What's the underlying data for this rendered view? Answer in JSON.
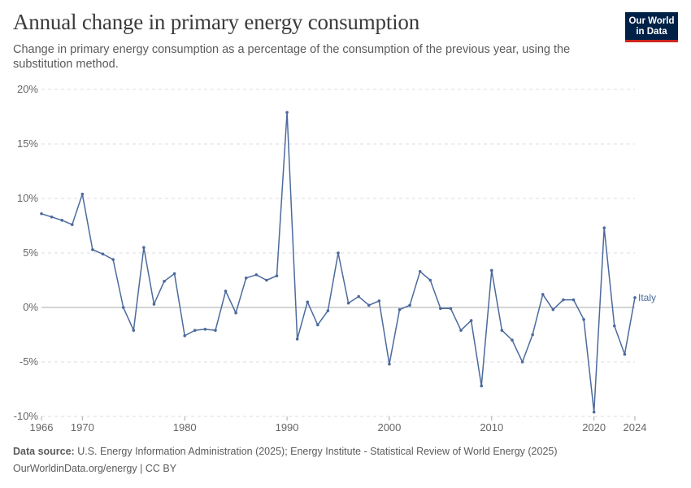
{
  "header": {
    "title": "Annual change in primary energy consumption",
    "subtitle": "Change in primary energy consumption as a percentage of the consumption of the previous year, using the substitution method.",
    "logo_line1": "Our World",
    "logo_line2": "in Data"
  },
  "footer": {
    "source_label": "Data source:",
    "source_text": "U.S. Energy Information Administration (2025); Energy Institute - Statistical Review of World Energy (2025)",
    "link_text": "OurWorldinData.org/energy",
    "license_text": "| CC BY"
  },
  "colors": {
    "line": "#4c6a9c",
    "grid": "#dddddd",
    "zero_line": "#a8a8a8",
    "axis_text": "#666666",
    "logo_bg": "#002147",
    "logo_accent": "#ce261e"
  },
  "chart_data": {
    "type": "line",
    "title": "Annual change in primary energy consumption",
    "xlabel": "",
    "ylabel": "",
    "xlim": [
      1966,
      2024
    ],
    "ylim": [
      -10,
      20
    ],
    "x_ticks": [
      1966,
      1970,
      1980,
      1990,
      2000,
      2010,
      2020,
      2024
    ],
    "y_ticks": [
      -10,
      -5,
      0,
      5,
      10,
      15,
      20
    ],
    "y_tick_labels": [
      "-10%",
      "-5%",
      "0%",
      "5%",
      "10%",
      "15%",
      "20%"
    ],
    "grid": true,
    "legend": "end-of-line label",
    "series": [
      {
        "name": "Italy",
        "x": [
          1966,
          1967,
          1968,
          1969,
          1970,
          1971,
          1972,
          1973,
          1974,
          1975,
          1976,
          1977,
          1978,
          1979,
          1980,
          1981,
          1982,
          1983,
          1984,
          1985,
          1986,
          1987,
          1988,
          1989,
          1990,
          1991,
          1992,
          1993,
          1994,
          1995,
          1996,
          1997,
          1998,
          1999,
          2000,
          2001,
          2002,
          2003,
          2004,
          2005,
          2006,
          2007,
          2008,
          2009,
          2010,
          2011,
          2012,
          2013,
          2014,
          2015,
          2016,
          2017,
          2018,
          2019,
          2020,
          2021,
          2022,
          2023,
          2024
        ],
        "values": [
          8.6,
          8.3,
          8.0,
          7.6,
          10.4,
          5.3,
          4.9,
          4.4,
          0.0,
          -2.1,
          5.5,
          0.3,
          2.4,
          3.1,
          -2.6,
          -2.1,
          -2.0,
          -2.1,
          1.5,
          -0.5,
          2.7,
          3.0,
          2.5,
          2.9,
          17.9,
          -2.9,
          0.5,
          -1.6,
          -0.3,
          5.0,
          0.4,
          1.0,
          0.2,
          0.6,
          -5.2,
          -0.2,
          0.2,
          3.3,
          2.5,
          -0.1,
          -0.1,
          -2.1,
          -1.2,
          -7.2,
          3.4,
          -2.1,
          -3.0,
          -5.0,
          -2.5,
          1.2,
          -0.2,
          0.7,
          0.7,
          -1.1,
          -9.6,
          7.3,
          -1.7,
          -4.3,
          0.9
        ]
      }
    ]
  }
}
